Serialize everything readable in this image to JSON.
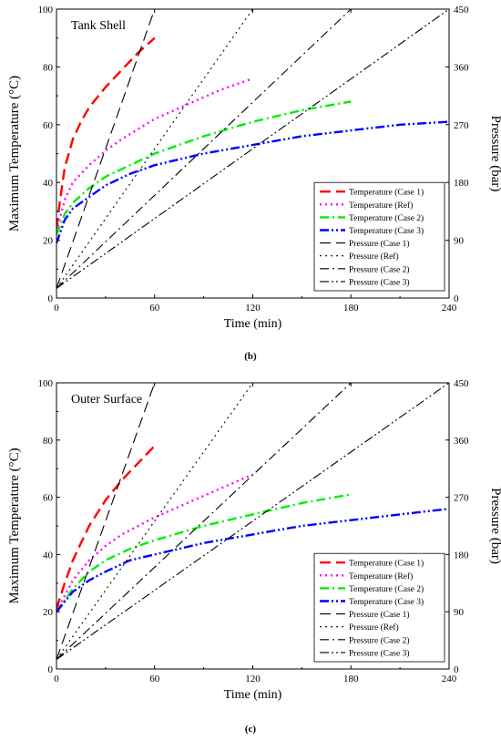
{
  "chart_data": [
    {
      "type": "line",
      "caption": "(b)",
      "annotation": "Tank Shell",
      "xlabel": "Time (min)",
      "ylabel": "Maximum Temperature (°C)",
      "y2label": "Pressure (bar)",
      "xlim": [
        0,
        240
      ],
      "ylim": [
        0,
        100
      ],
      "y2lim": [
        0,
        450
      ],
      "xticks": [
        0,
        60,
        120,
        180,
        240
      ],
      "yticks": [
        0,
        20,
        40,
        60,
        80,
        100
      ],
      "y2ticks": [
        0,
        90,
        180,
        270,
        360,
        450
      ],
      "legend_position": "bottom-right",
      "series": [
        {
          "name": "Temperature (Case 1)",
          "axis": "left",
          "color": "#ff0000",
          "dash": "long",
          "x": [
            0,
            2,
            5,
            10,
            15,
            20,
            30,
            40,
            50,
            60
          ],
          "y": [
            24,
            33,
            45,
            55,
            61,
            66,
            73,
            79,
            85,
            90
          ]
        },
        {
          "name": "Temperature (Ref)",
          "axis": "left",
          "color": "#ff00ff",
          "dash": "dot",
          "x": [
            0,
            5,
            10,
            20,
            30,
            40,
            60,
            80,
            100,
            120
          ],
          "y": [
            23,
            34,
            40,
            46,
            51,
            55,
            62,
            67,
            72,
            76
          ]
        },
        {
          "name": "Temperature (Case 2)",
          "axis": "left",
          "color": "#00ee00",
          "dash": "dashdot",
          "x": [
            0,
            5,
            10,
            20,
            30,
            45,
            60,
            90,
            120,
            150,
            180
          ],
          "y": [
            22,
            29,
            33,
            38,
            42,
            46,
            50,
            56,
            61,
            65,
            68
          ]
        },
        {
          "name": "Temperature (Case 3)",
          "axis": "left",
          "color": "#0000ff",
          "dash": "dashdotdot",
          "x": [
            0,
            5,
            10,
            20,
            30,
            45,
            60,
            90,
            120,
            150,
            180,
            210,
            240
          ],
          "y": [
            19,
            27,
            31,
            35,
            39,
            43,
            46,
            50,
            53,
            56,
            58,
            60,
            61
          ]
        },
        {
          "name": "Pressure (Case 1)",
          "axis": "right",
          "color": "#000000",
          "dash": "long",
          "x": [
            0,
            60
          ],
          "y": [
            15,
            450
          ]
        },
        {
          "name": "Pressure (Ref)",
          "axis": "right",
          "color": "#000000",
          "dash": "dot",
          "x": [
            0,
            120
          ],
          "y": [
            15,
            450
          ]
        },
        {
          "name": "Pressure (Case 2)",
          "axis": "right",
          "color": "#000000",
          "dash": "dashdot",
          "x": [
            0,
            180
          ],
          "y": [
            15,
            450
          ]
        },
        {
          "name": "Pressure (Case 3)",
          "axis": "right",
          "color": "#000000",
          "dash": "dashdotdot",
          "x": [
            0,
            240
          ],
          "y": [
            15,
            450
          ]
        }
      ]
    },
    {
      "type": "line",
      "caption": "(c)",
      "annotation": "Outer Surface",
      "xlabel": "Time (min)",
      "ylabel": "Maximum Temperature (°C)",
      "y2label": "Pressure (bar)",
      "xlim": [
        0,
        240
      ],
      "ylim": [
        0,
        100
      ],
      "y2lim": [
        0,
        450
      ],
      "xticks": [
        0,
        60,
        120,
        180,
        240
      ],
      "yticks": [
        0,
        20,
        40,
        60,
        80,
        100
      ],
      "y2ticks": [
        0,
        90,
        180,
        270,
        360,
        450
      ],
      "legend_position": "bottom-right",
      "series": [
        {
          "name": "Temperature (Case 1)",
          "axis": "left",
          "color": "#ff0000",
          "dash": "long",
          "x": [
            0,
            5,
            10,
            15,
            20,
            30,
            40,
            50,
            60
          ],
          "y": [
            21,
            30,
            38,
            44,
            50,
            59,
            66,
            72,
            78
          ]
        },
        {
          "name": "Temperature (Ref)",
          "axis": "left",
          "color": "#ff00ff",
          "dash": "dot",
          "x": [
            0,
            10,
            20,
            30,
            40,
            60,
            80,
            100,
            120
          ],
          "y": [
            20,
            31,
            38,
            43,
            47,
            53,
            58,
            63,
            68
          ]
        },
        {
          "name": "Temperature (Case 2)",
          "axis": "left",
          "color": "#00ee00",
          "dash": "dashdot",
          "x": [
            0,
            10,
            20,
            30,
            45,
            60,
            90,
            120,
            150,
            180
          ],
          "y": [
            20,
            28,
            34,
            38,
            42,
            45,
            50,
            54,
            58,
            61
          ]
        },
        {
          "name": "Temperature (Case 3)",
          "axis": "left",
          "color": "#0000ff",
          "dash": "dashdotdot",
          "x": [
            0,
            10,
            20,
            30,
            45,
            60,
            90,
            120,
            150,
            180,
            210,
            240
          ],
          "y": [
            20,
            27,
            31,
            34,
            38,
            40,
            44,
            47,
            50,
            52,
            54,
            56
          ]
        },
        {
          "name": "Pressure (Case 1)",
          "axis": "right",
          "color": "#000000",
          "dash": "long",
          "x": [
            0,
            60
          ],
          "y": [
            15,
            450
          ]
        },
        {
          "name": "Pressure (Ref)",
          "axis": "right",
          "color": "#000000",
          "dash": "dot",
          "x": [
            0,
            120
          ],
          "y": [
            15,
            450
          ]
        },
        {
          "name": "Pressure (Case 2)",
          "axis": "right",
          "color": "#000000",
          "dash": "dashdot",
          "x": [
            0,
            180
          ],
          "y": [
            15,
            450
          ]
        },
        {
          "name": "Pressure (Case 3)",
          "axis": "right",
          "color": "#000000",
          "dash": "dashdotdot",
          "x": [
            0,
            240
          ],
          "y": [
            15,
            450
          ]
        }
      ]
    }
  ]
}
